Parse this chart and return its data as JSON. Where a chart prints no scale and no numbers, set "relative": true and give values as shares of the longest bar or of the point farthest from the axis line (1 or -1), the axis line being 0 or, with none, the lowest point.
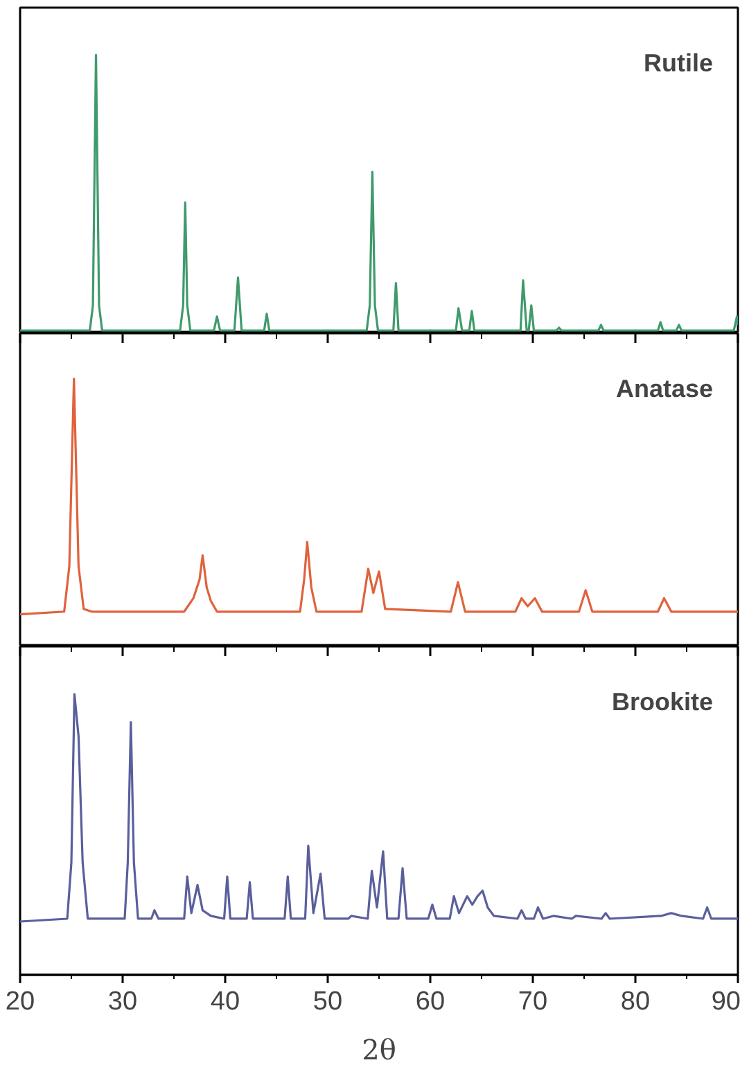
{
  "chart_data": [
    {
      "type": "line",
      "relative": true,
      "annotations": [
        "Rutile"
      ],
      "xlim": [
        20,
        90
      ],
      "xticks": [
        20,
        30,
        40,
        50,
        60,
        70,
        80,
        90
      ],
      "tick_labels": false,
      "grid": false,
      "series": [
        {
          "color": "#3f9a6c",
          "x": [
            20,
            26.8,
            27.1,
            27.4,
            27.7,
            28.0,
            35.6,
            35.9,
            36.1,
            36.3,
            36.6,
            38.9,
            39.2,
            39.5,
            40.9,
            41.25,
            41.6,
            43.8,
            44.05,
            44.3,
            53.8,
            54.1,
            54.35,
            54.6,
            54.9,
            56.4,
            56.65,
            56.9,
            62.5,
            62.75,
            63.1,
            63.8,
            64.05,
            64.3,
            68.8,
            69.05,
            69.4,
            69.6,
            69.85,
            70.1,
            72.3,
            72.55,
            72.8,
            76.4,
            76.65,
            76.9,
            82.2,
            82.45,
            82.7,
            84.0,
            84.25,
            84.5,
            89.6,
            89.9,
            90
          ],
          "values": [
            0.01,
            0.01,
            0.1,
            1,
            0.1,
            0.01,
            0.01,
            0.1,
            0.47,
            0.1,
            0.01,
            0.01,
            0.06,
            0.01,
            0.01,
            0.2,
            0.01,
            0.01,
            0.07,
            0.01,
            0.01,
            0.1,
            0.58,
            0.1,
            0.01,
            0.01,
            0.18,
            0.01,
            0.01,
            0.09,
            0.01,
            0.01,
            0.08,
            0.01,
            0.01,
            0.19,
            0.01,
            0.01,
            0.1,
            0.01,
            0.01,
            0.02,
            0.01,
            0.01,
            0.03,
            0.01,
            0.01,
            0.04,
            0.01,
            0.01,
            0.03,
            0.01,
            0.01,
            0.06,
            0.03
          ]
        }
      ]
    },
    {
      "type": "line",
      "relative": true,
      "annotations": [
        "Anatase"
      ],
      "xlim": [
        20,
        90
      ],
      "xticks": [
        20,
        30,
        40,
        50,
        60,
        70,
        80,
        90
      ],
      "tick_labels": false,
      "grid": false,
      "series": [
        {
          "color": "#e0623c",
          "x": [
            20,
            24.3,
            24.8,
            25.25,
            25.7,
            26.2,
            27,
            36,
            36.9,
            37.5,
            37.8,
            38.2,
            38.6,
            39.2,
            47.3,
            47.7,
            48.0,
            48.4,
            48.9,
            53.3,
            53.95,
            54.45,
            55.0,
            55.6,
            62.0,
            62.7,
            63.4,
            68.3,
            68.9,
            69.5,
            70.2,
            70.9,
            74.5,
            75.15,
            75.8,
            82.2,
            82.8,
            83.5,
            90
          ],
          "values": [
            0.12,
            0.13,
            0.3,
            1,
            0.3,
            0.14,
            0.13,
            0.13,
            0.18,
            0.25,
            0.34,
            0.22,
            0.17,
            0.13,
            0.13,
            0.25,
            0.39,
            0.22,
            0.13,
            0.13,
            0.29,
            0.2,
            0.28,
            0.14,
            0.13,
            0.24,
            0.13,
            0.13,
            0.18,
            0.15,
            0.18,
            0.13,
            0.13,
            0.21,
            0.13,
            0.13,
            0.18,
            0.13,
            0.13
          ]
        }
      ]
    },
    {
      "type": "line",
      "relative": true,
      "annotations": [
        "Brookite"
      ],
      "xlabel": "2θ",
      "xlim": [
        20,
        90
      ],
      "xticks": [
        20,
        30,
        40,
        50,
        60,
        70,
        80,
        90
      ],
      "tick_labels": "x",
      "grid": false,
      "series": [
        {
          "color": "#5a5f9c",
          "x": [
            20,
            24.6,
            25.0,
            25.3,
            25.7,
            26.1,
            26.6,
            30.2,
            30.5,
            30.8,
            31.1,
            31.5,
            32.8,
            33.1,
            33.5,
            36.0,
            36.3,
            36.7,
            37.3,
            37.8,
            38.6,
            39.9,
            40.2,
            40.5,
            42.1,
            42.4,
            42.7,
            45.8,
            46.1,
            46.4,
            47.8,
            48.1,
            48.6,
            49.3,
            49.7,
            52,
            52.3,
            53.9,
            54.3,
            54.8,
            55.4,
            55.8,
            56.9,
            57.3,
            57.7,
            59.8,
            60.2,
            60.6,
            61.9,
            62.3,
            62.8,
            63.6,
            64.1,
            64.6,
            65.1,
            65.6,
            66.2,
            68.5,
            68.9,
            69.3,
            70.1,
            70.5,
            71,
            72,
            73.8,
            74.2,
            76.7,
            77.1,
            77.5,
            82.5,
            83.5,
            84.5,
            86.6,
            87.0,
            87.4,
            90
          ],
          "values": [
            0.19,
            0.2,
            0.4,
            1,
            0.85,
            0.4,
            0.2,
            0.2,
            0.4,
            0.9,
            0.4,
            0.2,
            0.2,
            0.23,
            0.2,
            0.2,
            0.35,
            0.22,
            0.32,
            0.23,
            0.21,
            0.2,
            0.35,
            0.2,
            0.2,
            0.33,
            0.2,
            0.2,
            0.35,
            0.2,
            0.2,
            0.46,
            0.22,
            0.36,
            0.2,
            0.2,
            0.21,
            0.2,
            0.37,
            0.24,
            0.44,
            0.2,
            0.2,
            0.38,
            0.2,
            0.2,
            0.25,
            0.2,
            0.2,
            0.28,
            0.22,
            0.28,
            0.25,
            0.28,
            0.3,
            0.24,
            0.21,
            0.2,
            0.23,
            0.2,
            0.2,
            0.24,
            0.2,
            0.21,
            0.2,
            0.21,
            0.2,
            0.22,
            0.2,
            0.21,
            0.22,
            0.21,
            0.2,
            0.24,
            0.2,
            0.2
          ]
        }
      ]
    }
  ]
}
